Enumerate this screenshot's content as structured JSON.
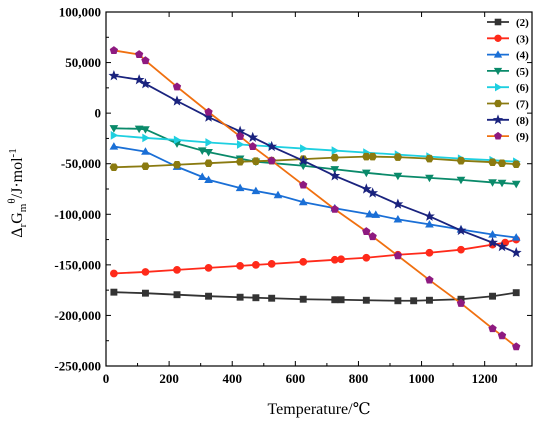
{
  "chart_data": {
    "type": "line",
    "xlabel": "Temperature/℃",
    "ylabel": {
      "main": "Δ",
      "sub1": "r",
      "mid": "G",
      "sub2": "m",
      "sup": "θ",
      "tail": "/J·mol",
      "tail_sup": "-1"
    },
    "xlim": [
      0,
      1350
    ],
    "ylim": [
      -250000,
      100000
    ],
    "x_ticks": [
      0,
      200,
      400,
      600,
      800,
      1000,
      1200
    ],
    "y_ticks": [
      -250000,
      -200000,
      -150000,
      -100000,
      -50000,
      0,
      50000,
      100000
    ],
    "x_tick_labels": [
      "0",
      "200",
      "400",
      "600",
      "800",
      "1000",
      "1200"
    ],
    "y_tick_labels": [
      "-250,000",
      "-200,000",
      "-150,000",
      "-100,000",
      "-50,000",
      "0",
      "50,000",
      "100,000"
    ],
    "legend_position": "top-right",
    "series": [
      {
        "name": "(2)",
        "color": "#333333",
        "marker": "square",
        "x": [
          25,
          125,
          225,
          325,
          425,
          475,
          525,
          625,
          725,
          745,
          825,
          925,
          975,
          1025,
          1125,
          1225,
          1300
        ],
        "y": [
          -177000,
          -178000,
          -179500,
          -181000,
          -182000,
          -182500,
          -183000,
          -184000,
          -184500,
          -184500,
          -185000,
          -185500,
          -185500,
          -185000,
          -184000,
          -181000,
          -177500
        ]
      },
      {
        "name": "(3)",
        "color": "#ff2a1a",
        "marker": "circle",
        "x": [
          25,
          125,
          225,
          325,
          425,
          475,
          525,
          625,
          725,
          745,
          825,
          925,
          1025,
          1125,
          1225,
          1265,
          1300
        ],
        "y": [
          -158500,
          -157000,
          -155000,
          -153000,
          -151000,
          -150000,
          -149000,
          -147000,
          -145000,
          -144500,
          -143000,
          -140000,
          -138000,
          -135000,
          -130000,
          -128000,
          -125000
        ]
      },
      {
        "name": "(4)",
        "color": "#1a6fd6",
        "marker": "triangle-up",
        "x": [
          25,
          125,
          225,
          305,
          325,
          425,
          475,
          545,
          625,
          725,
          835,
          855,
          925,
          1025,
          1125,
          1225,
          1300
        ],
        "y": [
          -33000,
          -38000,
          -53000,
          -63000,
          -66000,
          -74000,
          -77000,
          -81000,
          -88000,
          -94000,
          -100000,
          -100500,
          -105000,
          -110000,
          -115000,
          -120000,
          -123000
        ]
      },
      {
        "name": "(5)",
        "color": "#0a8a6a",
        "marker": "triangle-down",
        "x": [
          25,
          105,
          125,
          225,
          305,
          325,
          425,
          475,
          625,
          725,
          825,
          925,
          1025,
          1125,
          1225,
          1255,
          1300
        ],
        "y": [
          -15000,
          -15500,
          -16000,
          -30000,
          -37000,
          -38500,
          -45000,
          -48000,
          -52000,
          -55500,
          -59000,
          -62000,
          -64000,
          -66000,
          -68500,
          -69000,
          -70000
        ]
      },
      {
        "name": "(6)",
        "color": "#1ecfe0",
        "marker": "triangle-right",
        "x": [
          25,
          125,
          225,
          325,
          425,
          525,
          625,
          725,
          825,
          925,
          1025,
          1125,
          1225,
          1300
        ],
        "y": [
          -22000,
          -24500,
          -26500,
          -29000,
          -31000,
          -33000,
          -35000,
          -37000,
          -39000,
          -41000,
          -43000,
          -45000,
          -46500,
          -48000
        ]
      },
      {
        "name": "(7)",
        "color": "#8a7a10",
        "marker": "hexagon",
        "x": [
          25,
          125,
          225,
          325,
          425,
          475,
          525,
          625,
          725,
          825,
          845,
          925,
          1025,
          1125,
          1225,
          1255,
          1300
        ],
        "y": [
          -53500,
          -52500,
          -51000,
          -49500,
          -48000,
          -47500,
          -47000,
          -45500,
          -44000,
          -43000,
          -43000,
          -43500,
          -45000,
          -47000,
          -48500,
          -49500,
          -50500
        ]
      },
      {
        "name": "(8)",
        "color": "#1a237e",
        "marker": "star",
        "x": [
          25,
          105,
          125,
          225,
          325,
          425,
          465,
          525,
          625,
          725,
          825,
          845,
          925,
          1025,
          1125,
          1225,
          1255,
          1300
        ],
        "y": [
          37000,
          33000,
          29000,
          12000,
          -4000,
          -18000,
          -24000,
          -33000,
          -47000,
          -62000,
          -75000,
          -79000,
          -90000,
          -102000,
          -116000,
          -128000,
          -132000,
          -138000
        ]
      },
      {
        "name": "(9)",
        "color": "#f07010",
        "marker": "pentagon",
        "x": [
          25,
          105,
          125,
          225,
          325,
          425,
          465,
          525,
          625,
          725,
          825,
          845,
          925,
          1025,
          1125,
          1225,
          1255,
          1300
        ],
        "y": [
          62000,
          58000,
          52000,
          26000,
          1000,
          -23000,
          -33000,
          -47000,
          -71000,
          -95000,
          -117000,
          -122000,
          -141000,
          -165000,
          -188000,
          -213000,
          -220000,
          -231000
        ],
        "marker_color": "#8e1a80"
      }
    ]
  }
}
